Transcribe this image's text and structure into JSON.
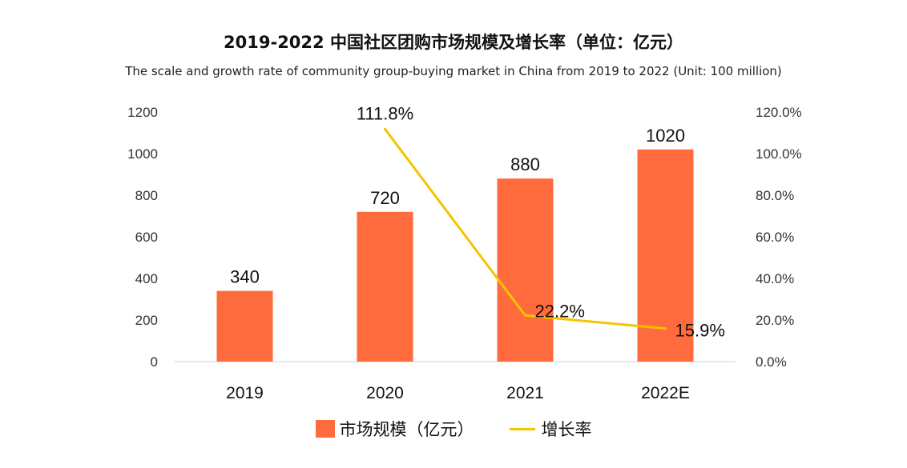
{
  "chart_data": {
    "type": "bar+line",
    "title": "2019-2022 中国社区团购市场规模及增长率（单位：亿元）",
    "subtitle": "The scale and growth rate of community group-buying market in China from 2019 to 2022 (Unit: 100 million)",
    "categories": [
      "2019",
      "2020",
      "2021",
      "2022E"
    ],
    "series": [
      {
        "name": "市场规模（亿元）",
        "type": "bar",
        "axis": "left",
        "color": "#FF6B3D",
        "values": [
          340,
          720,
          880,
          1020
        ],
        "labels": [
          "340",
          "720",
          "880",
          "1020"
        ]
      },
      {
        "name": "增长率",
        "type": "line",
        "axis": "right",
        "color": "#F5C400",
        "values": [
          null,
          111.8,
          22.2,
          15.9
        ],
        "labels": [
          "",
          "111.8%",
          "22.2%",
          "15.9%"
        ]
      }
    ],
    "y_left": {
      "min": 0,
      "max": 1200,
      "ticks": [
        0,
        200,
        400,
        600,
        800,
        1000,
        1200
      ],
      "tick_labels": [
        "0",
        "200",
        "400",
        "600",
        "800",
        "1000",
        "1200"
      ]
    },
    "y_right": {
      "min": 0,
      "max": 120,
      "ticks": [
        0,
        20,
        40,
        60,
        80,
        100,
        120
      ],
      "tick_labels": [
        "0.0%",
        "20.0%",
        "40.0%",
        "60.0%",
        "80.0%",
        "100.0%",
        "120.0%"
      ]
    },
    "legend_position": "bottom",
    "grid": false
  }
}
